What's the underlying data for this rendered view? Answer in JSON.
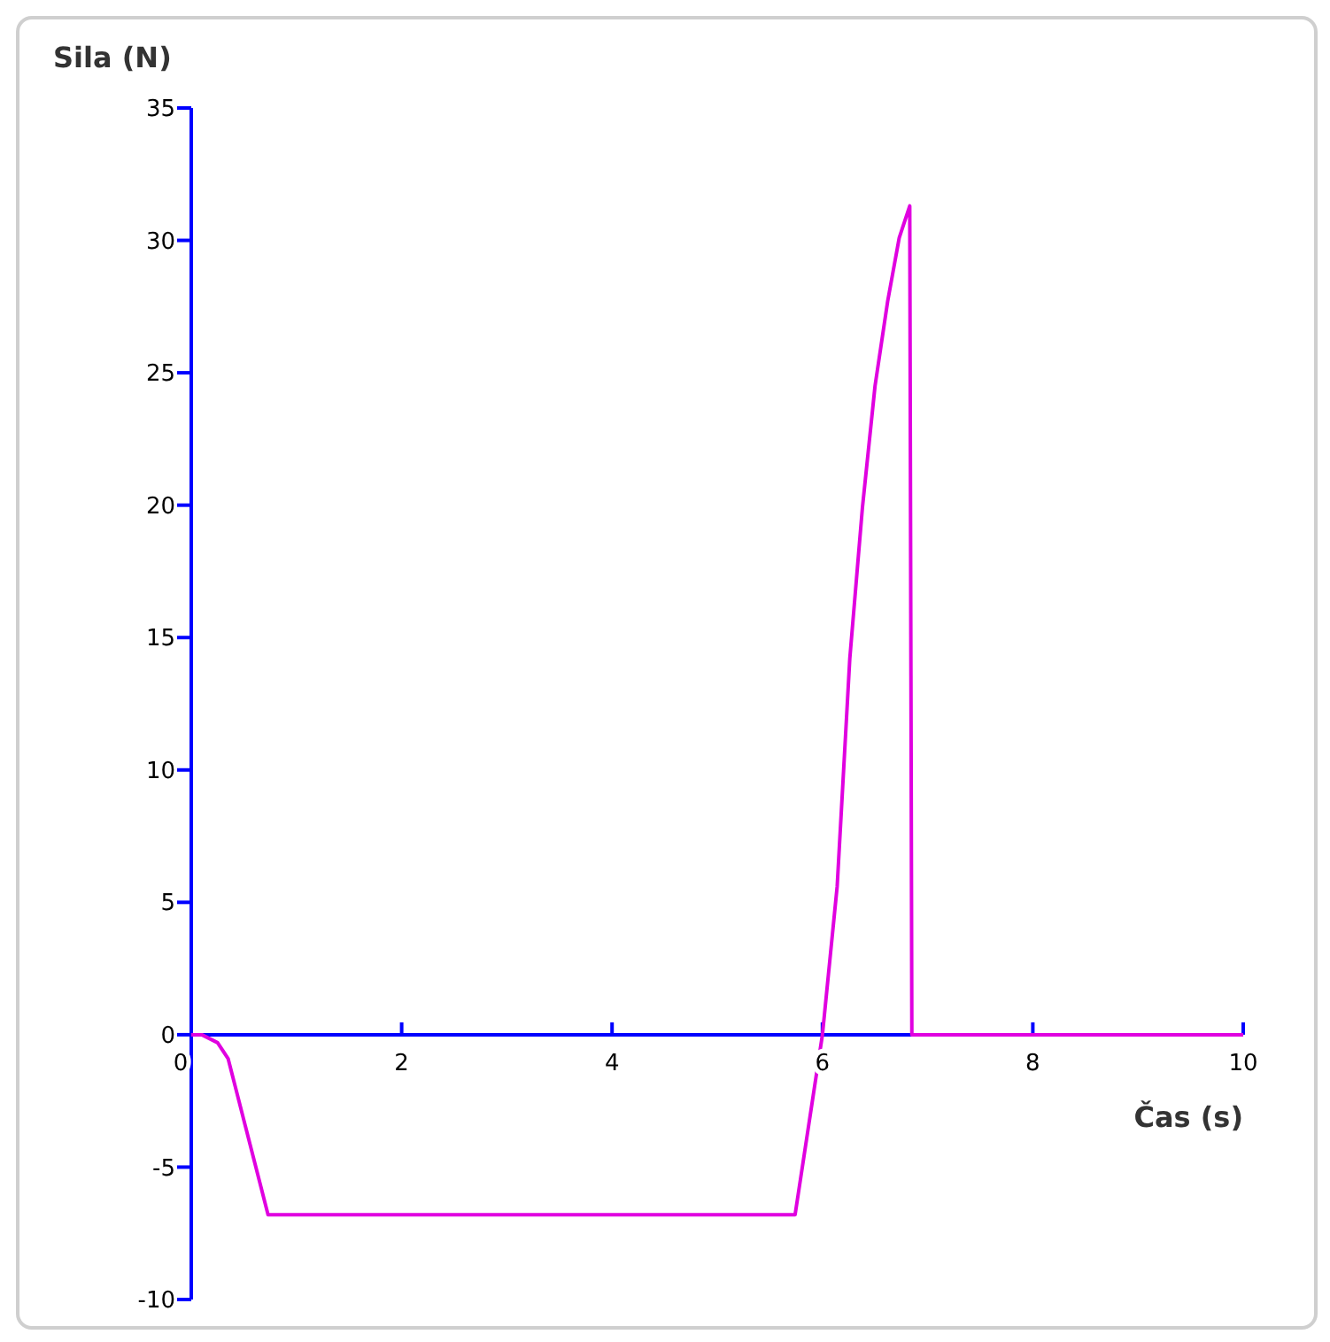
{
  "chart_data": {
    "type": "line",
    "ylabel": "Sila (N)",
    "xlabel": "Čas (s)",
    "xlim": [
      0,
      10
    ],
    "xticks": [
      0,
      2,
      4,
      6,
      8,
      10
    ],
    "ylim": [
      -10,
      35
    ],
    "yticks": [
      -10,
      -5,
      0,
      5,
      10,
      15,
      20,
      25,
      30,
      35
    ],
    "grid": false,
    "marker": "none",
    "line_style": "solid",
    "series": [
      {
        "color": "#e000e0",
        "x": [
          0,
          0.1,
          0.25,
          0.35,
          0.73,
          1.5,
          3,
          4.5,
          5.74,
          6.0,
          6.14,
          6.26,
          6.38,
          6.5,
          6.62,
          6.73,
          6.83,
          6.85,
          7,
          8,
          10
        ],
        "values": [
          0,
          0,
          -0.3,
          -0.9,
          -6.8,
          -6.8,
          -6.8,
          -6.8,
          -6.8,
          0,
          5.6,
          14.2,
          19.9,
          24.5,
          27.7,
          30.1,
          31.3,
          0,
          0,
          0,
          0
        ]
      }
    ]
  }
}
